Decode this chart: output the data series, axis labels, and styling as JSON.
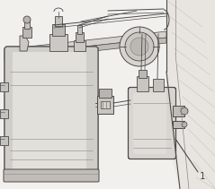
{
  "background_color": "#f5f5f5",
  "line_color": "#4a4a4a",
  "light_gray": "#d0d0d0",
  "mid_gray": "#b0b0b0",
  "dark_gray": "#888888",
  "white": "#ffffff",
  "callout_number": "1",
  "figsize": [
    2.39,
    2.11
  ],
  "dpi": 100
}
